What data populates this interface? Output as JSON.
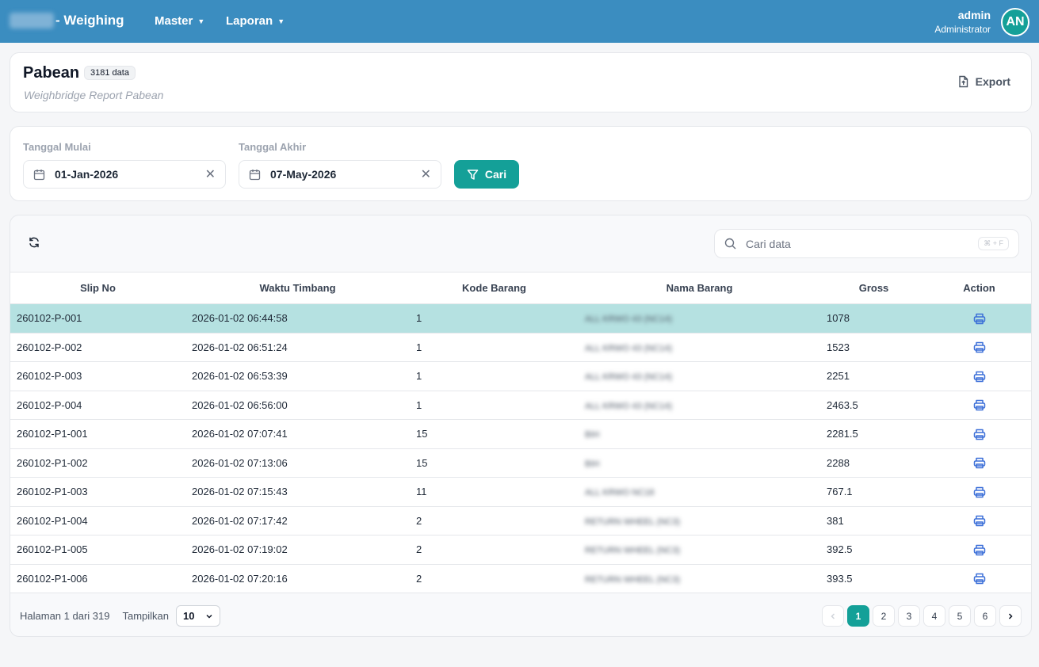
{
  "app": {
    "brand_suffix": "- Weighing"
  },
  "nav": [
    {
      "label": "Master"
    },
    {
      "label": "Laporan"
    }
  ],
  "user": {
    "name": "admin",
    "role": "Administrator",
    "initials": "AN"
  },
  "header": {
    "title": "Pabean",
    "count_badge": "3181 data",
    "subtitle": "Weighbridge Report Pabean",
    "export_label": "Export"
  },
  "filter": {
    "start_label": "Tanggal Mulai",
    "start_value": "01-Jan-2026",
    "end_label": "Tanggal Akhir",
    "end_value": "07-May-2026",
    "search_button": "Cari"
  },
  "table": {
    "search_placeholder": "Cari data",
    "shortcut": "⌘ + F",
    "columns": [
      "Slip No",
      "Waktu Timbang",
      "Kode Barang",
      "Nama Barang",
      "Gross",
      "Action"
    ],
    "rows": [
      {
        "slip": "260102-P-001",
        "time": "2026-01-02 06:44:58",
        "kode": "1",
        "nama": "ALL KRWO 43 (NC14)",
        "gross": "1078"
      },
      {
        "slip": "260102-P-002",
        "time": "2026-01-02 06:51:24",
        "kode": "1",
        "nama": "ALL KRWO 43 (NC14)",
        "gross": "1523"
      },
      {
        "slip": "260102-P-003",
        "time": "2026-01-02 06:53:39",
        "kode": "1",
        "nama": "ALL KRWO 43 (NC14)",
        "gross": "2251"
      },
      {
        "slip": "260102-P-004",
        "time": "2026-01-02 06:56:00",
        "kode": "1",
        "nama": "ALL KRWO 43 (NC14)",
        "gross": "2463.5"
      },
      {
        "slip": "260102-P1-001",
        "time": "2026-01-02 07:07:41",
        "kode": "15",
        "nama": "BIH",
        "gross": "2281.5"
      },
      {
        "slip": "260102-P1-002",
        "time": "2026-01-02 07:13:06",
        "kode": "15",
        "nama": "BIH",
        "gross": "2288"
      },
      {
        "slip": "260102-P1-003",
        "time": "2026-01-02 07:15:43",
        "kode": "11",
        "nama": "ALL KRWO NC18",
        "gross": "767.1"
      },
      {
        "slip": "260102-P1-004",
        "time": "2026-01-02 07:17:42",
        "kode": "2",
        "nama": "RETURN WHEEL (NC3)",
        "gross": "381"
      },
      {
        "slip": "260102-P1-005",
        "time": "2026-01-02 07:19:02",
        "kode": "2",
        "nama": "RETURN WHEEL (NC3)",
        "gross": "392.5"
      },
      {
        "slip": "260102-P1-006",
        "time": "2026-01-02 07:20:16",
        "kode": "2",
        "nama": "RETURN WHEEL (NC3)",
        "gross": "393.5"
      }
    ],
    "selected_row": 0
  },
  "pagination": {
    "summary": "Halaman 1 dari 319",
    "show_label": "Tampilkan",
    "page_size": "10",
    "pages": [
      "1",
      "2",
      "3",
      "4",
      "5",
      "6"
    ],
    "current": "1"
  },
  "colors": {
    "primary": "#14a098",
    "topbar": "#3b8dc0",
    "selected_row": "#b5e1e1",
    "print_icon": "#3b6fd8"
  }
}
